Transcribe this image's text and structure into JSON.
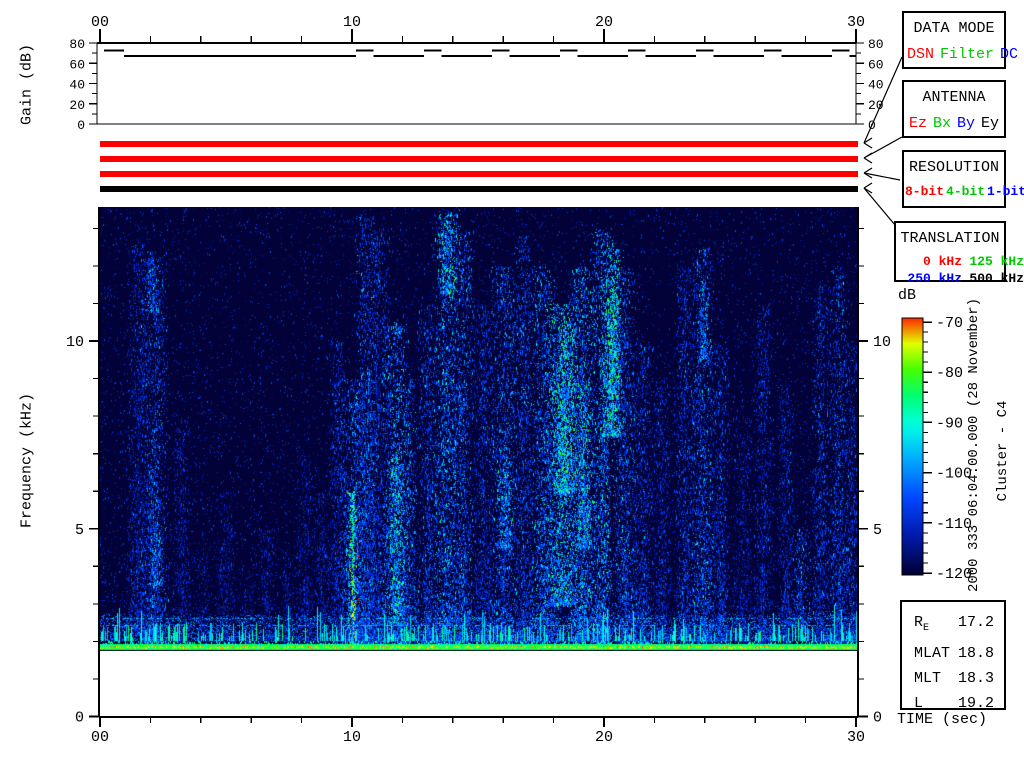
{
  "labels": {
    "time_axis": "TIME (sec)",
    "freq_axis": "Frequency (kHz)",
    "gain_axis": "Gain (dB)",
    "colorbar": "dB",
    "datetime": "2000 333 06:04:00.000 (28 November)",
    "spacecraft": "Cluster - C4"
  },
  "panels": {
    "data_mode": {
      "title": "DATA MODE",
      "options": [
        {
          "label": "DSN",
          "color": "#ff0000"
        },
        {
          "label": "Filter",
          "color": "#00c800"
        },
        {
          "label": "DC",
          "color": "#0000ff"
        }
      ]
    },
    "antenna": {
      "title": "ANTENNA",
      "options": [
        {
          "label": "Ez",
          "color": "#ff0000"
        },
        {
          "label": "Bx",
          "color": "#00c800"
        },
        {
          "label": "By",
          "color": "#0000ff"
        },
        {
          "label": "Ey",
          "color": "#000000"
        }
      ]
    },
    "resolution": {
      "title": "RESOLUTION",
      "options": [
        {
          "label": "8-bit",
          "color": "#ff0000"
        },
        {
          "label": "4-bit",
          "color": "#00c800"
        },
        {
          "label": "1-bit",
          "color": "#0000ff"
        }
      ]
    },
    "translation": {
      "title": "TRANSLATION",
      "options": [
        {
          "label": "0 kHz",
          "color": "#ff0000"
        },
        {
          "label": "125 kHz",
          "color": "#00c800"
        },
        {
          "label": "250 kHz",
          "color": "#0000ff"
        },
        {
          "label": "500 kHz",
          "color": "#000000"
        }
      ]
    }
  },
  "status_bars": [
    {
      "name": "data-mode-bar",
      "color": "#ff0000",
      "selected": "DSN"
    },
    {
      "name": "antenna-bar",
      "color": "#ff0000",
      "selected": "Ez"
    },
    {
      "name": "resolution-bar",
      "color": "#ff0000",
      "selected": "8-bit"
    },
    {
      "name": "translation-bar",
      "color": "#000000",
      "selected": "500 kHz"
    }
  ],
  "ephemeris": {
    "rows": [
      {
        "label": "R",
        "sub": "E",
        "value": "17.2"
      },
      {
        "label": "MLAT",
        "sub": "",
        "value": "18.8"
      },
      {
        "label": "MLT",
        "sub": "",
        "value": "18.3"
      },
      {
        "label": "L",
        "sub": "",
        "value": "19.2"
      }
    ]
  },
  "chart_data": [
    {
      "type": "line",
      "id": "gain",
      "ylabel": "Gain (dB)",
      "xlabel": "",
      "xlim": [
        0,
        30
      ],
      "ylim": [
        0,
        80
      ],
      "yticks": [
        0,
        20,
        40,
        60,
        80
      ],
      "yticks_minor": [
        10,
        30,
        50,
        70
      ],
      "xticks": [
        0,
        10,
        20,
        30
      ],
      "xtick_labels": [
        "00",
        "10",
        "20",
        "30"
      ],
      "xticks_minor_step": 2,
      "segments_db": [
        [
          0.15,
          0.95,
          72.5
        ],
        [
          0.95,
          10.15,
          67
        ],
        [
          10.15,
          10.85,
          72.5
        ],
        [
          10.85,
          12.85,
          67
        ],
        [
          12.85,
          13.55,
          72.5
        ],
        [
          13.55,
          15.55,
          67
        ],
        [
          15.55,
          16.25,
          72.5
        ],
        [
          16.25,
          18.25,
          67
        ],
        [
          18.25,
          18.95,
          72.5
        ],
        [
          18.95,
          20.95,
          67
        ],
        [
          20.95,
          21.65,
          72.5
        ],
        [
          21.65,
          23.65,
          67
        ],
        [
          23.65,
          24.35,
          72.5
        ],
        [
          24.35,
          26.35,
          67
        ],
        [
          26.35,
          27.05,
          72.5
        ],
        [
          27.05,
          29.05,
          67
        ],
        [
          29.05,
          29.75,
          72.5
        ],
        [
          29.75,
          30,
          67
        ]
      ]
    },
    {
      "type": "heatmap",
      "id": "spectrogram",
      "ylabel": "Frequency (kHz)",
      "xlabel": "TIME (sec)",
      "xlim": [
        0,
        30
      ],
      "ylim": [
        0,
        13.6
      ],
      "data_fmin": 1.75,
      "yticks": [
        0,
        5,
        10
      ],
      "yticks_minor_step": 1,
      "xticks": [
        0,
        10,
        20,
        30
      ],
      "xtick_labels": [
        "00",
        "10",
        "20",
        "30"
      ],
      "xticks_minor_step": 2,
      "colorbar": {
        "label": "dB",
        "min": -120,
        "max": -70,
        "ticks": [
          -70,
          -80,
          -90,
          -100,
          -110,
          -120
        ],
        "minor_step": 2
      },
      "features": {
        "baseline_band_khz": [
          1.78,
          2.0
        ],
        "noise_band_khz": [
          2.0,
          2.72
        ],
        "dotted_lines_khz": [
          2.45,
          2.62
        ]
      },
      "events": [
        [
          1.5,
          0.5,
          2.2,
          12.6,
          0.35
        ],
        [
          2.15,
          0.6,
          2.0,
          12.4,
          0.45
        ],
        [
          2.2,
          0.35,
          3.5,
          5.2,
          0.6
        ],
        [
          2.05,
          0.3,
          10.8,
          12.2,
          0.55
        ],
        [
          3.2,
          0.4,
          2.0,
          8.0,
          0.3
        ],
        [
          4.1,
          0.3,
          2.0,
          4.5,
          0.25
        ],
        [
          5.0,
          0.45,
          2.0,
          6.0,
          0.28
        ],
        [
          5.9,
          0.3,
          2.0,
          4.0,
          0.25
        ],
        [
          6.6,
          0.35,
          2.0,
          5.0,
          0.28
        ],
        [
          7.4,
          0.3,
          2.0,
          4.5,
          0.25
        ],
        [
          8.1,
          0.4,
          2.0,
          7.0,
          0.3
        ],
        [
          8.8,
          0.35,
          2.0,
          6.0,
          0.3
        ],
        [
          9.4,
          0.4,
          2.0,
          10.0,
          0.35
        ],
        [
          10.0,
          0.3,
          1.8,
          6.0,
          1.0
        ],
        [
          10.15,
          0.9,
          1.8,
          9.0,
          0.5
        ],
        [
          10.55,
          0.5,
          2.0,
          13.4,
          0.45
        ],
        [
          11.05,
          0.5,
          2.0,
          13.0,
          0.4
        ],
        [
          11.7,
          0.6,
          2.0,
          10.5,
          0.6
        ],
        [
          11.75,
          0.35,
          2.5,
          7.0,
          0.75
        ],
        [
          12.25,
          0.4,
          2.0,
          9.0,
          0.5
        ],
        [
          13.0,
          0.45,
          2.0,
          11.0,
          0.45
        ],
        [
          13.75,
          0.6,
          2.0,
          13.5,
          0.55
        ],
        [
          13.8,
          0.4,
          11.3,
          13.4,
          0.75
        ],
        [
          14.4,
          0.45,
          2.0,
          13.0,
          0.5
        ],
        [
          15.2,
          0.5,
          2.0,
          11.0,
          0.4
        ],
        [
          16.0,
          0.6,
          2.0,
          12.0,
          0.5
        ],
        [
          16.05,
          0.4,
          4.5,
          7.0,
          0.65
        ],
        [
          16.8,
          0.45,
          2.0,
          12.8,
          0.45
        ],
        [
          17.6,
          0.6,
          2.0,
          12.0,
          0.55
        ],
        [
          18.3,
          0.7,
          3.0,
          11.0,
          0.7
        ],
        [
          18.45,
          0.5,
          6.0,
          10.5,
          0.85
        ],
        [
          19.1,
          0.6,
          2.0,
          12.0,
          0.6
        ],
        [
          19.15,
          0.4,
          4.5,
          9.0,
          0.75
        ],
        [
          19.9,
          0.5,
          2.0,
          13.0,
          0.6
        ],
        [
          20.3,
          0.5,
          7.5,
          12.5,
          0.8
        ],
        [
          20.35,
          0.3,
          8.5,
          11.5,
          0.88
        ],
        [
          20.8,
          0.5,
          2.0,
          12.0,
          0.5
        ],
        [
          21.5,
          0.5,
          2.0,
          10.0,
          0.4
        ],
        [
          22.3,
          0.45,
          2.0,
          9.0,
          0.35
        ],
        [
          23.2,
          0.45,
          2.0,
          12.0,
          0.4
        ],
        [
          23.9,
          0.5,
          2.0,
          12.5,
          0.5
        ],
        [
          23.95,
          0.3,
          9.5,
          11.5,
          0.6
        ],
        [
          24.6,
          0.4,
          2.0,
          10.0,
          0.4
        ],
        [
          25.5,
          0.4,
          2.0,
          8.0,
          0.3
        ],
        [
          26.3,
          0.4,
          2.0,
          11.0,
          0.35
        ],
        [
          27.2,
          0.4,
          2.0,
          9.0,
          0.35
        ],
        [
          27.8,
          0.4,
          2.4,
          5.0,
          0.5
        ],
        [
          28.6,
          0.45,
          2.0,
          11.5,
          0.4
        ],
        [
          29.3,
          0.4,
          2.0,
          12.0,
          0.45
        ],
        [
          29.8,
          0.3,
          2.0,
          10.0,
          0.4
        ]
      ]
    }
  ]
}
